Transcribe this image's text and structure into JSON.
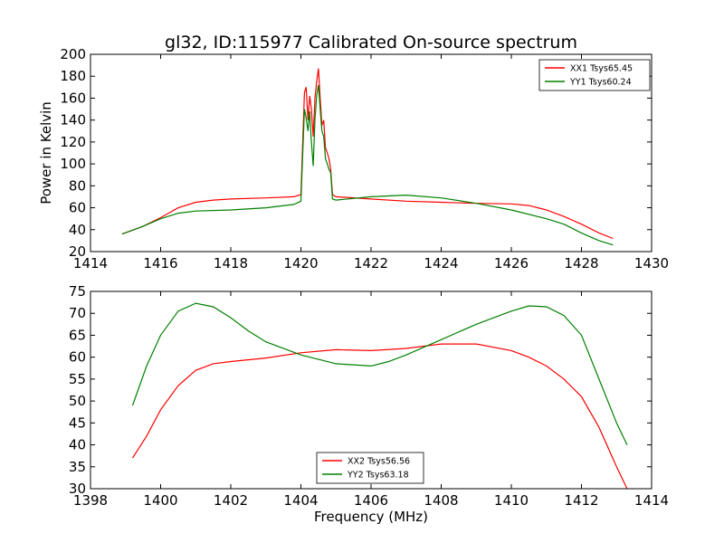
{
  "title": "gl32, ID:115977 Calibrated On-source spectrum",
  "chart_data": [
    {
      "type": "line",
      "ylabel": "Power in Kelvin",
      "xlabel": "",
      "xlim": [
        1414,
        1430
      ],
      "ylim": [
        20,
        200
      ],
      "xticks": [
        1414,
        1416,
        1418,
        1420,
        1422,
        1424,
        1426,
        1428,
        1430
      ],
      "yticks": [
        20,
        40,
        60,
        80,
        100,
        120,
        140,
        160,
        180,
        200
      ],
      "legend_position": "top-right",
      "series": [
        {
          "name": "XX1 Tsys65.45",
          "color": "#ff0000",
          "points": [
            [
              1414.9,
              36
            ],
            [
              1415.5,
              43
            ],
            [
              1416.0,
              51
            ],
            [
              1416.5,
              60
            ],
            [
              1417.0,
              65
            ],
            [
              1417.5,
              67
            ],
            [
              1418.0,
              68
            ],
            [
              1419.0,
              69
            ],
            [
              1419.8,
              70
            ],
            [
              1420.0,
              72
            ],
            [
              1420.1,
              165
            ],
            [
              1420.15,
              170
            ],
            [
              1420.2,
              140
            ],
            [
              1420.25,
              162
            ],
            [
              1420.3,
              150
            ],
            [
              1420.35,
              125
            ],
            [
              1420.4,
              160
            ],
            [
              1420.45,
              175
            ],
            [
              1420.5,
              187
            ],
            [
              1420.55,
              160
            ],
            [
              1420.6,
              135
            ],
            [
              1420.65,
              140
            ],
            [
              1420.7,
              115
            ],
            [
              1420.75,
              110
            ],
            [
              1420.8,
              105
            ],
            [
              1420.85,
              95
            ],
            [
              1420.9,
              72
            ],
            [
              1421.0,
              70
            ],
            [
              1422.0,
              68
            ],
            [
              1423.0,
              66
            ],
            [
              1424.0,
              65
            ],
            [
              1425.0,
              64
            ],
            [
              1426.0,
              63.5
            ],
            [
              1426.5,
              62
            ],
            [
              1427.0,
              58
            ],
            [
              1427.5,
              52
            ],
            [
              1428.0,
              45
            ],
            [
              1428.5,
              37
            ],
            [
              1428.9,
              32
            ]
          ]
        },
        {
          "name": "YY1 Tsys60.24",
          "color": "#008000",
          "points": [
            [
              1414.9,
              36
            ],
            [
              1415.5,
              43
            ],
            [
              1416.0,
              50
            ],
            [
              1416.5,
              55
            ],
            [
              1417.0,
              57
            ],
            [
              1418.0,
              58
            ],
            [
              1419.0,
              60
            ],
            [
              1419.8,
              63
            ],
            [
              1420.0,
              66
            ],
            [
              1420.1,
              150
            ],
            [
              1420.15,
              142
            ],
            [
              1420.2,
              130
            ],
            [
              1420.25,
              148
            ],
            [
              1420.3,
              120
            ],
            [
              1420.35,
              98
            ],
            [
              1420.4,
              140
            ],
            [
              1420.45,
              162
            ],
            [
              1420.5,
              172
            ],
            [
              1420.55,
              150
            ],
            [
              1420.6,
              130
            ],
            [
              1420.65,
              125
            ],
            [
              1420.7,
              105
            ],
            [
              1420.75,
              100
            ],
            [
              1420.8,
              95
            ],
            [
              1420.85,
              92
            ],
            [
              1420.9,
              68
            ],
            [
              1421.0,
              67
            ],
            [
              1422.0,
              70
            ],
            [
              1423.0,
              71.5
            ],
            [
              1424.0,
              69
            ],
            [
              1425.0,
              64
            ],
            [
              1426.0,
              58
            ],
            [
              1427.0,
              50
            ],
            [
              1427.5,
              45
            ],
            [
              1428.0,
              37
            ],
            [
              1428.5,
              30
            ],
            [
              1428.9,
              26
            ]
          ]
        }
      ]
    },
    {
      "type": "line",
      "ylabel": "",
      "xlabel": "Frequency (MHz)",
      "xlim": [
        1398,
        1414
      ],
      "ylim": [
        30,
        75
      ],
      "xticks": [
        1398,
        1400,
        1402,
        1404,
        1406,
        1408,
        1410,
        1412,
        1414
      ],
      "yticks": [
        30,
        35,
        40,
        45,
        50,
        55,
        60,
        65,
        70,
        75
      ],
      "legend_position": "lower-center",
      "series": [
        {
          "name": "XX2 Tsys56.56",
          "color": "#ff0000",
          "points": [
            [
              1399.2,
              37
            ],
            [
              1399.6,
              42
            ],
            [
              1400.0,
              48
            ],
            [
              1400.5,
              53.5
            ],
            [
              1401.0,
              57
            ],
            [
              1401.5,
              58.5
            ],
            [
              1402.0,
              59
            ],
            [
              1403.0,
              59.8
            ],
            [
              1404.0,
              61
            ],
            [
              1405.0,
              61.7
            ],
            [
              1406.0,
              61.5
            ],
            [
              1407.0,
              62
            ],
            [
              1408.0,
              63
            ],
            [
              1409.0,
              63
            ],
            [
              1410.0,
              61.5
            ],
            [
              1410.5,
              60
            ],
            [
              1411.0,
              58
            ],
            [
              1411.5,
              55
            ],
            [
              1412.0,
              51
            ],
            [
              1412.5,
              44
            ],
            [
              1413.0,
              35
            ],
            [
              1413.3,
              30
            ]
          ]
        },
        {
          "name": "YY2 Tsys63.18",
          "color": "#008000",
          "points": [
            [
              1399.2,
              49
            ],
            [
              1399.6,
              58
            ],
            [
              1400.0,
              65
            ],
            [
              1400.5,
              70.5
            ],
            [
              1401.0,
              72.3
            ],
            [
              1401.5,
              71.5
            ],
            [
              1402.0,
              69
            ],
            [
              1402.5,
              66
            ],
            [
              1403.0,
              63.5
            ],
            [
              1404.0,
              60.5
            ],
            [
              1405.0,
              58.5
            ],
            [
              1406.0,
              58
            ],
            [
              1406.5,
              59
            ],
            [
              1407.0,
              60.5
            ],
            [
              1408.0,
              64
            ],
            [
              1409.0,
              67.5
            ],
            [
              1410.0,
              70.5
            ],
            [
              1410.5,
              71.7
            ],
            [
              1411.0,
              71.5
            ],
            [
              1411.5,
              69.5
            ],
            [
              1412.0,
              65
            ],
            [
              1412.5,
              55
            ],
            [
              1413.0,
              45
            ],
            [
              1413.3,
              40
            ]
          ]
        }
      ]
    }
  ]
}
